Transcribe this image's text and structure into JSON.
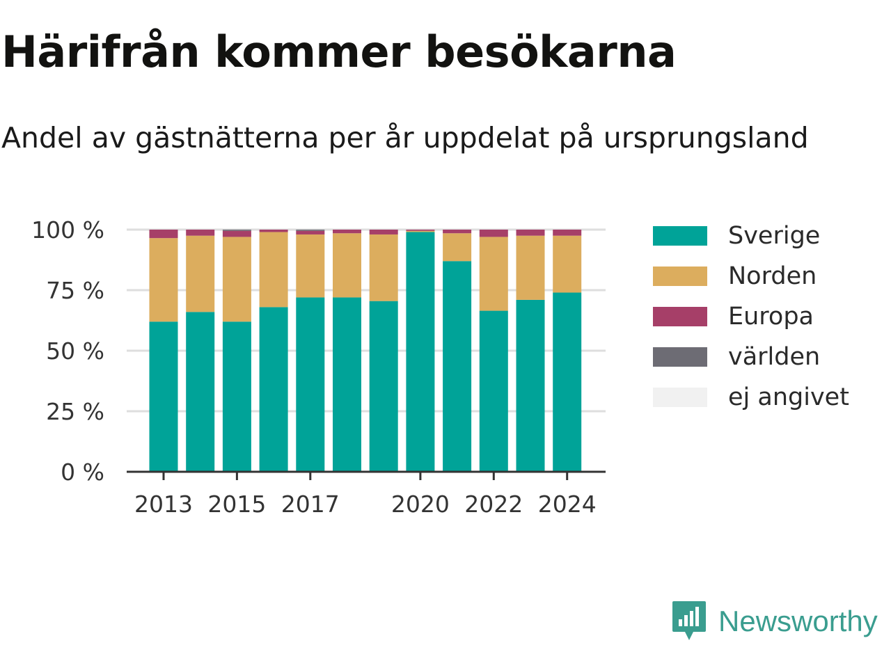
{
  "header": {
    "title": "Härifrån kommer besökarna",
    "subtitle": "Andel av gästnätterna per år uppdelat på ursprungsland"
  },
  "brand": {
    "name": "Newsworthy",
    "icon": "newsworthy-logo-icon",
    "color": "#3a9d8f"
  },
  "chart_data": {
    "type": "bar",
    "stacked": true,
    "title": "Härifrån kommer besökarna",
    "subtitle": "Andel av gästnätterna per år uppdelat på ursprungsland",
    "categories": [
      "2013",
      "2014",
      "2015",
      "2016",
      "2017",
      "2018",
      "2019",
      "2020",
      "2021",
      "2022",
      "2023",
      "2024"
    ],
    "x_tick_labels": [
      "2013",
      "2015",
      "2017",
      "2020",
      "2022",
      "2024"
    ],
    "y_ticks": [
      {
        "value": 0,
        "label": "0 %"
      },
      {
        "value": 25,
        "label": "25 %"
      },
      {
        "value": 50,
        "label": "50 %"
      },
      {
        "value": 75,
        "label": "75 %"
      },
      {
        "value": 100,
        "label": "100 %"
      }
    ],
    "ylim": [
      0,
      100
    ],
    "grid": true,
    "legend_position": "right",
    "series": [
      {
        "name": "Sverige",
        "color": "#00a398",
        "values": [
          62,
          66,
          62,
          68,
          72,
          72,
          70.5,
          99,
          87,
          66.5,
          71,
          74
        ]
      },
      {
        "name": "Norden",
        "color": "#dcad5e",
        "values": [
          34.5,
          31.5,
          35,
          31,
          26,
          26.5,
          27.5,
          0.5,
          11.5,
          30.5,
          26.5,
          23.5
        ]
      },
      {
        "name": "Europa",
        "color": "#a63f68",
        "values": [
          3.5,
          2.5,
          2.5,
          1,
          1.5,
          1.5,
          2,
          0.5,
          1.5,
          3,
          2.5,
          2.5
        ]
      },
      {
        "name": "världen",
        "color": "#6d6c74",
        "values": [
          0,
          0,
          0.5,
          0,
          0.5,
          0,
          0,
          0,
          0,
          0,
          0,
          0
        ]
      },
      {
        "name": "ej angivet",
        "color": "#f1f1f1",
        "values": [
          0,
          0,
          0,
          0,
          0,
          0,
          0,
          0,
          0,
          0,
          0,
          0
        ]
      }
    ]
  }
}
